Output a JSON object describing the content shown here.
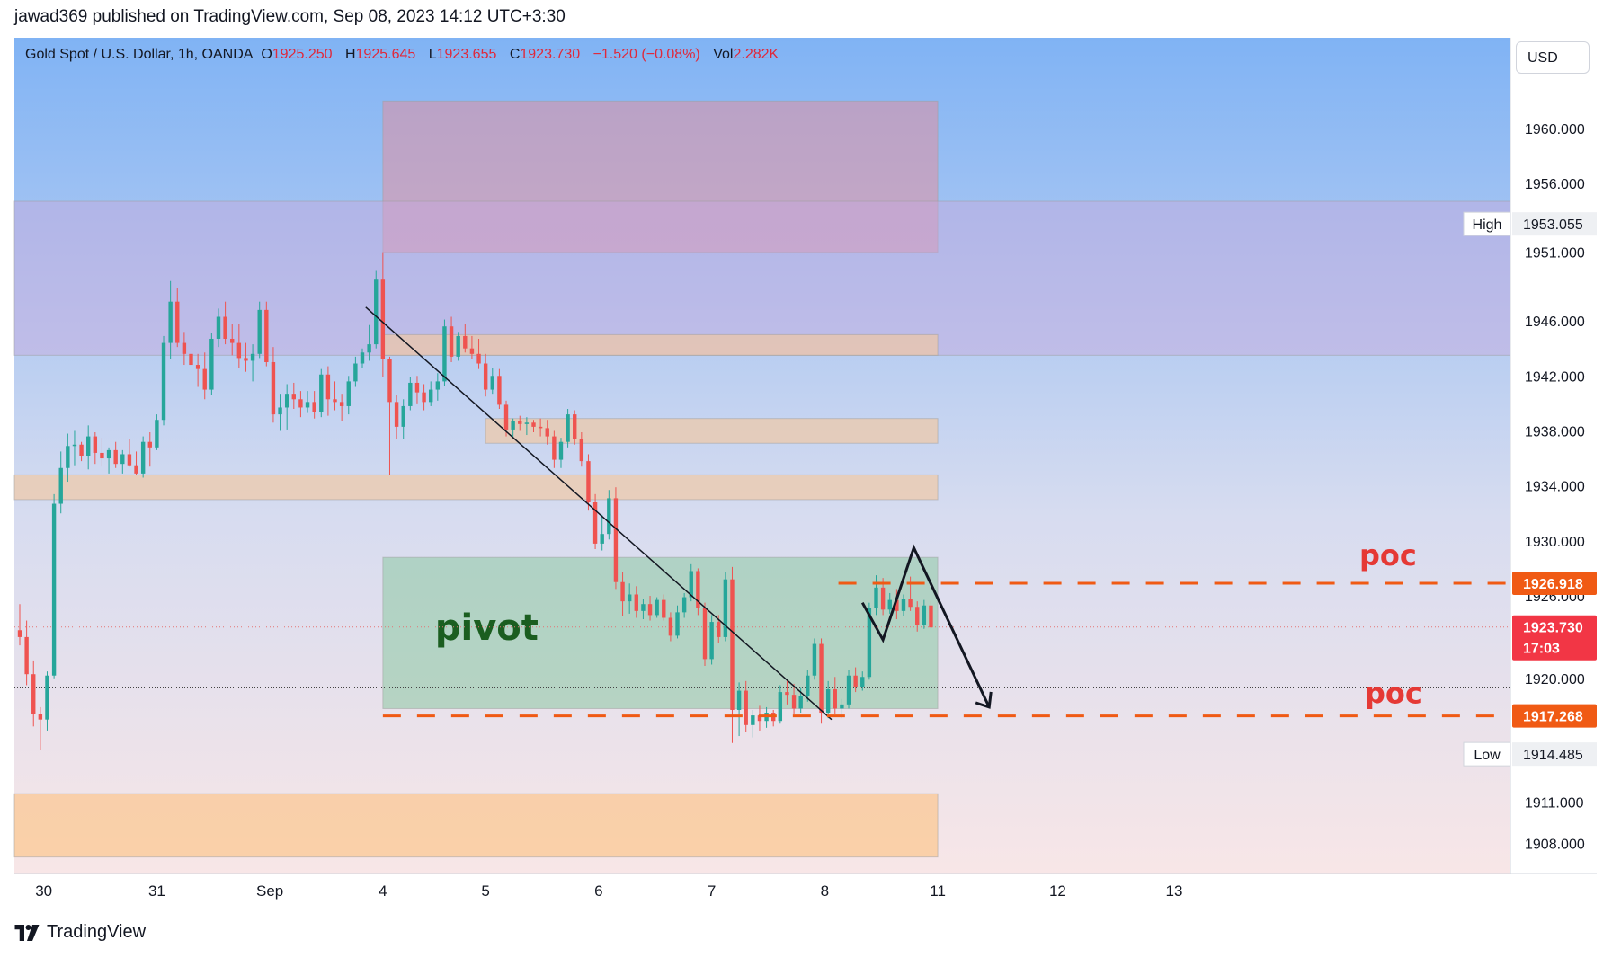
{
  "header": {
    "published_line": "jawad369 published on TradingView.com, Sep 08, 2023 14:12 UTC+3:30"
  },
  "legend": {
    "symbol": "Gold Spot / U.S. Dollar, 1h, OANDA",
    "o_label": "O",
    "o_value": "1925.250",
    "h_label": "H",
    "h_value": "1925.645",
    "l_label": "L",
    "l_value": "1923.655",
    "c_label": "C",
    "c_value": "1923.730",
    "change": "−1.520 (−0.08%)",
    "vol_label": "Vol",
    "vol_value": "2.282K"
  },
  "currency_button": "USD",
  "footer": {
    "brand": "TradingView"
  },
  "colors": {
    "up": "#26a69a",
    "down": "#ef5350",
    "poc": "#f05a14",
    "pivot_text": "#1b5e20",
    "poc_text": "#e53935",
    "last_price_tag": "#f23645"
  },
  "chart_data": {
    "type": "candlestick",
    "title": "Gold Spot / U.S. Dollar, 1h, OANDA",
    "ylim": [
      1905.8,
      1966.6
    ],
    "y_ticks": [
      "1908.000",
      "1911.000",
      "1920.000",
      "1926.000",
      "1930.000",
      "1934.000",
      "1938.000",
      "1942.000",
      "1946.000",
      "1951.000",
      "1956.000",
      "1960.000"
    ],
    "x_ticks": [
      {
        "label": "30",
        "index": 3.5
      },
      {
        "label": "31",
        "index": 20
      },
      {
        "label": "Sep",
        "index": 36.5
      },
      {
        "label": "4",
        "index": 53
      },
      {
        "label": "5",
        "index": 68
      },
      {
        "label": "6",
        "index": 84.5
      },
      {
        "label": "7",
        "index": 101
      },
      {
        "label": "8",
        "index": 117.5
      },
      {
        "label": "11",
        "index": 134
      },
      {
        "label": "12",
        "index": 151.5
      },
      {
        "label": "13",
        "index": 168.5
      }
    ],
    "candles": [
      [
        1923.5,
        1925.4,
        1922.4,
        1923.0
      ],
      [
        1923.0,
        1924.2,
        1919.5,
        1920.3
      ],
      [
        1920.3,
        1921.3,
        1916.5,
        1917.4
      ],
      [
        1917.4,
        1917.9,
        1914.8,
        1917.0
      ],
      [
        1917.0,
        1920.5,
        1916.2,
        1920.2
      ],
      [
        1920.2,
        1933.4,
        1920.0,
        1932.7
      ],
      [
        1932.7,
        1936.5,
        1932.0,
        1935.3
      ],
      [
        1935.3,
        1937.8,
        1934.3,
        1936.9
      ],
      [
        1936.9,
        1938.0,
        1935.5,
        1937.0
      ],
      [
        1937.0,
        1937.2,
        1935.8,
        1936.2
      ],
      [
        1936.2,
        1938.4,
        1935.2,
        1937.6
      ],
      [
        1937.6,
        1937.9,
        1935.6,
        1936.4
      ],
      [
        1936.4,
        1937.5,
        1935.4,
        1936.0
      ],
      [
        1936.0,
        1936.8,
        1934.9,
        1936.6
      ],
      [
        1936.6,
        1937.2,
        1935.3,
        1935.6
      ],
      [
        1935.6,
        1936.6,
        1934.9,
        1936.3
      ],
      [
        1936.3,
        1937.4,
        1935.4,
        1935.5
      ],
      [
        1935.5,
        1936.5,
        1934.8,
        1934.9
      ],
      [
        1934.9,
        1937.6,
        1934.6,
        1937.2
      ],
      [
        1937.2,
        1937.9,
        1935.4,
        1936.8
      ],
      [
        1936.8,
        1939.2,
        1936.6,
        1938.8
      ],
      [
        1938.8,
        1944.9,
        1938.4,
        1944.4
      ],
      [
        1944.4,
        1948.9,
        1943.2,
        1947.4
      ],
      [
        1947.4,
        1948.4,
        1944.1,
        1944.4
      ],
      [
        1944.4,
        1945.2,
        1942.8,
        1943.6
      ],
      [
        1943.6,
        1944.3,
        1942.1,
        1942.8
      ],
      [
        1942.8,
        1943.6,
        1941.2,
        1942.5
      ],
      [
        1942.5,
        1943.7,
        1940.3,
        1941.0
      ],
      [
        1941.0,
        1945.1,
        1940.6,
        1944.7
      ],
      [
        1944.7,
        1946.9,
        1944.1,
        1946.3
      ],
      [
        1946.3,
        1947.4,
        1944.3,
        1944.7
      ],
      [
        1944.7,
        1945.8,
        1943.5,
        1944.4
      ],
      [
        1944.4,
        1945.8,
        1942.6,
        1943.3
      ],
      [
        1943.3,
        1944.4,
        1942.3,
        1943.1
      ],
      [
        1943.1,
        1944.3,
        1941.6,
        1943.6
      ],
      [
        1943.6,
        1947.4,
        1943.3,
        1946.8
      ],
      [
        1946.8,
        1947.4,
        1942.7,
        1943.0
      ],
      [
        1943.0,
        1944.1,
        1938.6,
        1939.2
      ],
      [
        1939.2,
        1940.7,
        1938.0,
        1939.7
      ],
      [
        1939.7,
        1941.4,
        1938.1,
        1940.7
      ],
      [
        1940.7,
        1941.5,
        1939.6,
        1940.3
      ],
      [
        1940.3,
        1940.9,
        1939.0,
        1939.7
      ],
      [
        1939.7,
        1940.9,
        1939.3,
        1940.1
      ],
      [
        1940.1,
        1940.9,
        1938.9,
        1939.4
      ],
      [
        1939.4,
        1942.5,
        1939.0,
        1942.1
      ],
      [
        1942.1,
        1942.7,
        1939.1,
        1940.3
      ],
      [
        1940.3,
        1941.6,
        1939.5,
        1940.1
      ],
      [
        1940.1,
        1940.7,
        1938.7,
        1939.8
      ],
      [
        1939.8,
        1942.0,
        1939.2,
        1941.6
      ],
      [
        1941.6,
        1943.4,
        1941.2,
        1942.9
      ],
      [
        1942.9,
        1944.0,
        1942.6,
        1943.7
      ],
      [
        1943.7,
        1945.7,
        1943.1,
        1944.3
      ],
      [
        1944.3,
        1949.7,
        1944.0,
        1949.0
      ],
      [
        1949.0,
        1951.0,
        1941.9,
        1943.2
      ],
      [
        1943.2,
        1943.4,
        1934.8,
        1940.1
      ],
      [
        1940.1,
        1940.6,
        1937.4,
        1938.3
      ],
      [
        1938.3,
        1940.3,
        1937.4,
        1939.8
      ],
      [
        1939.8,
        1941.9,
        1939.5,
        1941.5
      ],
      [
        1941.5,
        1942.0,
        1940.0,
        1940.8
      ],
      [
        1940.8,
        1941.4,
        1939.5,
        1940.1
      ],
      [
        1940.1,
        1941.6,
        1939.8,
        1941.0
      ],
      [
        1941.0,
        1942.2,
        1940.2,
        1941.6
      ],
      [
        1941.6,
        1946.1,
        1941.3,
        1945.6
      ],
      [
        1945.6,
        1946.3,
        1943.0,
        1943.4
      ],
      [
        1943.4,
        1945.2,
        1943.1,
        1944.9
      ],
      [
        1944.9,
        1945.8,
        1943.7,
        1944.0
      ],
      [
        1944.0,
        1944.9,
        1943.2,
        1943.6
      ],
      [
        1943.6,
        1944.7,
        1942.5,
        1942.9
      ],
      [
        1942.9,
        1943.6,
        1940.5,
        1941.0
      ],
      [
        1941.0,
        1942.6,
        1940.7,
        1942.0
      ],
      [
        1942.0,
        1942.5,
        1939.6,
        1939.9
      ],
      [
        1939.9,
        1940.2,
        1937.6,
        1938.1
      ],
      [
        1938.1,
        1938.9,
        1937.5,
        1938.7
      ],
      [
        1938.7,
        1939.1,
        1938.0,
        1938.5
      ],
      [
        1938.5,
        1939.0,
        1937.7,
        1938.6
      ],
      [
        1938.6,
        1938.8,
        1937.9,
        1938.3
      ],
      [
        1938.3,
        1938.9,
        1937.6,
        1938.2
      ],
      [
        1938.2,
        1938.8,
        1937.0,
        1937.6
      ],
      [
        1937.6,
        1938.0,
        1935.3,
        1935.9
      ],
      [
        1935.9,
        1937.5,
        1935.3,
        1937.2
      ],
      [
        1937.2,
        1939.6,
        1936.8,
        1939.2
      ],
      [
        1939.2,
        1939.5,
        1937.0,
        1937.4
      ],
      [
        1937.4,
        1937.9,
        1935.4,
        1935.8
      ],
      [
        1935.8,
        1936.3,
        1932.2,
        1932.8
      ],
      [
        1932.8,
        1933.4,
        1929.4,
        1929.8
      ],
      [
        1929.8,
        1931.9,
        1929.3,
        1930.5
      ],
      [
        1930.5,
        1933.7,
        1930.1,
        1933.1
      ],
      [
        1933.1,
        1933.9,
        1926.5,
        1927.0
      ],
      [
        1927.0,
        1927.7,
        1924.5,
        1925.6
      ],
      [
        1925.6,
        1926.9,
        1924.7,
        1926.1
      ],
      [
        1926.1,
        1926.7,
        1924.4,
        1924.9
      ],
      [
        1924.9,
        1925.8,
        1924.3,
        1925.4
      ],
      [
        1925.4,
        1926.0,
        1924.2,
        1924.6
      ],
      [
        1924.6,
        1925.9,
        1924.4,
        1925.7
      ],
      [
        1925.7,
        1926.1,
        1924.2,
        1924.4
      ],
      [
        1924.4,
        1924.8,
        1922.7,
        1923.1
      ],
      [
        1923.1,
        1925.3,
        1922.9,
        1924.8
      ],
      [
        1924.8,
        1926.2,
        1924.4,
        1925.9
      ],
      [
        1925.9,
        1928.3,
        1925.6,
        1927.8
      ],
      [
        1927.8,
        1928.0,
        1924.6,
        1925.1
      ],
      [
        1925.1,
        1925.5,
        1920.9,
        1921.4
      ],
      [
        1921.4,
        1924.6,
        1921.0,
        1924.1
      ],
      [
        1924.1,
        1924.6,
        1922.6,
        1923.0
      ],
      [
        1923.0,
        1927.7,
        1922.7,
        1927.2
      ],
      [
        1927.2,
        1928.1,
        1915.3,
        1917.7
      ],
      [
        1917.7,
        1919.7,
        1915.8,
        1919.1
      ],
      [
        1919.1,
        1919.8,
        1916.1,
        1916.6
      ],
      [
        1916.6,
        1917.7,
        1915.7,
        1917.3
      ],
      [
        1917.3,
        1918.0,
        1916.2,
        1916.9
      ],
      [
        1916.9,
        1917.9,
        1916.4,
        1917.5
      ],
      [
        1917.5,
        1917.7,
        1916.5,
        1916.9
      ],
      [
        1916.9,
        1919.5,
        1916.7,
        1919.0
      ],
      [
        1919.0,
        1919.9,
        1918.1,
        1918.8
      ],
      [
        1918.8,
        1919.6,
        1917.4,
        1917.8
      ],
      [
        1917.8,
        1919.3,
        1917.5,
        1918.7
      ],
      [
        1918.7,
        1920.6,
        1918.3,
        1920.2
      ],
      [
        1920.2,
        1922.9,
        1919.9,
        1922.5
      ],
      [
        1922.5,
        1922.9,
        1916.7,
        1917.5
      ],
      [
        1917.5,
        1919.8,
        1917.1,
        1919.2
      ],
      [
        1919.2,
        1920.1,
        1917.4,
        1917.8
      ],
      [
        1917.8,
        1918.5,
        1917.1,
        1918.1
      ],
      [
        1918.1,
        1920.6,
        1917.8,
        1920.2
      ],
      [
        1920.2,
        1920.8,
        1919.0,
        1919.4
      ],
      [
        1919.4,
        1920.5,
        1919.1,
        1920.1
      ],
      [
        1920.1,
        1925.5,
        1919.9,
        1925.1
      ],
      [
        1925.1,
        1927.5,
        1924.6,
        1926.6
      ],
      [
        1926.6,
        1927.3,
        1924.6,
        1925.0
      ],
      [
        1925.0,
        1926.2,
        1924.7,
        1925.7
      ],
      [
        1925.7,
        1926.5,
        1924.3,
        1924.9
      ],
      [
        1924.9,
        1926.1,
        1924.5,
        1925.8
      ],
      [
        1925.8,
        1927.4,
        1924.9,
        1925.2
      ],
      [
        1925.2,
        1925.6,
        1923.4,
        1923.9
      ],
      [
        1923.9,
        1925.7,
        1923.6,
        1925.3
      ],
      [
        1925.3,
        1925.6,
        1923.6,
        1923.7
      ]
    ],
    "last_price": "1923.730",
    "countdown": "17:03",
    "poc_levels": [
      {
        "price": 1926.918,
        "label": "1926.918",
        "text": "poc"
      },
      {
        "price": 1917.268,
        "label": "1917.268",
        "text": "poc"
      }
    ],
    "high_marker": {
      "label": "High",
      "price": 1953.055,
      "value": "1953.055"
    },
    "low_marker": {
      "label": "Low",
      "price": 1914.485,
      "value": "1914.485"
    },
    "zones": [
      {
        "name": "supply-top",
        "x0": "4",
        "x1": "11",
        "y0": 1951.0,
        "y1": 1962.0,
        "fill": "#e08fa0",
        "opacity": 0.55
      },
      {
        "name": "band-purple",
        "x0": "start",
        "x1": "axis",
        "y0": 1943.5,
        "y1": 1954.7,
        "fill": "#c8a8dc",
        "opacity": 0.45
      },
      {
        "name": "res-1",
        "x0": "4",
        "x1": "11",
        "y0": 1943.5,
        "y1": 1945.0,
        "fill": "#f2c7a0",
        "opacity": 0.65
      },
      {
        "name": "res-2",
        "x0": "5",
        "x1": "11",
        "y0": 1937.1,
        "y1": 1938.9,
        "fill": "#f2c7a0",
        "opacity": 0.65
      },
      {
        "name": "res-3",
        "x0": "start",
        "x1": "11",
        "y0": 1933.0,
        "y1": 1934.8,
        "fill": "#f2c7a0",
        "opacity": 0.65
      },
      {
        "name": "pivot",
        "x0": "4",
        "x1": "11",
        "y0": 1917.8,
        "y1": 1928.8,
        "fill": "#8cc9a2",
        "opacity": 0.55
      },
      {
        "name": "demand-bottom",
        "x0": "start",
        "x1": "11",
        "y0": 1907.0,
        "y1": 1911.6,
        "fill": "#fbc894",
        "opacity": 0.75
      }
    ],
    "pivot_label": "pivot",
    "trendline": [
      [
        1947.0,
        50.5
      ],
      [
        1917.0,
        118.5
      ]
    ],
    "projection": [
      [
        1925.5,
        123.0
      ],
      [
        1922.8,
        126.0
      ],
      [
        1929.5,
        130.5
      ],
      [
        1917.9,
        141.5
      ]
    ]
  }
}
